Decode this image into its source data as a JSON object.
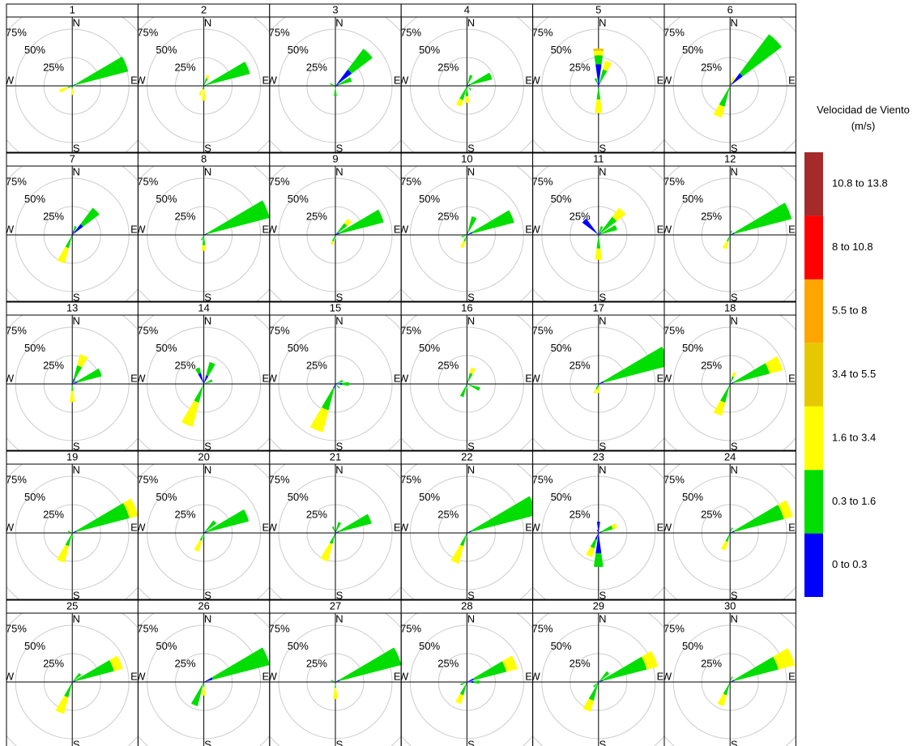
{
  "chart_data": {
    "type": "windrose",
    "legend_title": "Velocidad de Viento (m/s)",
    "bins": [
      {
        "label": "0 to 0.3",
        "color": "#0000ff"
      },
      {
        "label": "0.3 to 1.6",
        "color": "#00dd00"
      },
      {
        "label": "1.6 to 3.4",
        "color": "#ffff00"
      },
      {
        "label": "3.4 to 5.5",
        "color": "#e6c800"
      },
      {
        "label": "5.5 to 8",
        "color": "#ffa500"
      },
      {
        "label": "8 to 10.8",
        "color": "#ff0000"
      },
      {
        "label": "10.8 to 13.8",
        "color": "#a52a2a"
      }
    ],
    "cardinals": [
      "N",
      "E",
      "S",
      "W"
    ],
    "rlim": [
      0,
      75
    ],
    "rticks": [
      {
        "value": 25,
        "label": "25%"
      },
      {
        "value": 50,
        "label": "50%"
      },
      {
        "value": 75,
        "label": "75%"
      }
    ],
    "panels": [
      {
        "title": "1",
        "directions": [
          67.5,
          247.5,
          180,
          90
        ],
        "values": [
          [
            3,
            48,
            0
          ],
          [
            1,
            3,
            8
          ],
          [
            0,
            2,
            6
          ],
          [
            0,
            3,
            0
          ]
        ]
      },
      {
        "title": "2",
        "directions": [
          67.5,
          22.5,
          202.5,
          180
        ],
        "values": [
          [
            2,
            40,
            0
          ],
          [
            1,
            6,
            3
          ],
          [
            0,
            3,
            6
          ],
          [
            0,
            3,
            10
          ]
        ]
      },
      {
        "title": "3",
        "directions": [
          45,
          67.5,
          180,
          292.5
        ],
        "values": [
          [
            18,
            23,
            0
          ],
          [
            3,
            12,
            0
          ],
          [
            1,
            8,
            0
          ],
          [
            0,
            5,
            0
          ]
        ]
      },
      {
        "title": "4",
        "directions": [
          67.5,
          22.5,
          202.5,
          180,
          135
        ],
        "values": [
          [
            3,
            20,
            0
          ],
          [
            2,
            8,
            0
          ],
          [
            1,
            12,
            6
          ],
          [
            1,
            8,
            6
          ],
          [
            0,
            5,
            0
          ]
        ]
      },
      {
        "title": "5",
        "directions": [
          0,
          22.5,
          180,
          337.5
        ],
        "values": [
          [
            19,
            8,
            4,
            2
          ],
          [
            3,
            12,
            8
          ],
          [
            2,
            10,
            12
          ],
          [
            2,
            5,
            0
          ]
        ]
      },
      {
        "title": "6",
        "directions": [
          45,
          202.5,
          22.5
        ],
        "values": [
          [
            14,
            43,
            0
          ],
          [
            1,
            18,
            10
          ],
          [
            0,
            3,
            5
          ]
        ]
      },
      {
        "title": "7",
        "directions": [
          45,
          202.5,
          22.5
        ],
        "values": [
          [
            12,
            18,
            0
          ],
          [
            2,
            10,
            14
          ],
          [
            4,
            4,
            0
          ]
        ]
      },
      {
        "title": "8",
        "directions": [
          67.5,
          180,
          202.5
        ],
        "values": [
          [
            3,
            57,
            0
          ],
          [
            1,
            8,
            5
          ],
          [
            0,
            5,
            0
          ]
        ]
      },
      {
        "title": "9",
        "directions": [
          67.5,
          45,
          202.5,
          180
        ],
        "values": [
          [
            4,
            40,
            0
          ],
          [
            3,
            10,
            5
          ],
          [
            1,
            5,
            3
          ],
          [
            0,
            5,
            0
          ]
        ]
      },
      {
        "title": "10",
        "directions": [
          67.5,
          22.5,
          202.5,
          247.5
        ],
        "values": [
          [
            5,
            38,
            0
          ],
          [
            2,
            15,
            0
          ],
          [
            1,
            5,
            6
          ],
          [
            0,
            5,
            0
          ]
        ]
      },
      {
        "title": "11",
        "directions": [
          45,
          67.5,
          315,
          180,
          22.5
        ],
        "values": [
          [
            3,
            17,
            10
          ],
          [
            2,
            15,
            0
          ],
          [
            18,
            0,
            0
          ],
          [
            2,
            10,
            10
          ],
          [
            0,
            8,
            0
          ]
        ]
      },
      {
        "title": "12",
        "directions": [
          67.5,
          202.5,
          22.5
        ],
        "values": [
          [
            4,
            52,
            0
          ],
          [
            1,
            5,
            7
          ],
          [
            0,
            4,
            0
          ]
        ]
      },
      {
        "title": "13",
        "directions": [
          67.5,
          22.5,
          180,
          45
        ],
        "values": [
          [
            5,
            22,
            0
          ],
          [
            5,
            12,
            10
          ],
          [
            1,
            5,
            10
          ],
          [
            0,
            4,
            0
          ]
        ]
      },
      {
        "title": "14",
        "directions": [
          202.5,
          22.5,
          67.5,
          337.5
        ],
        "values": [
          [
            2,
            15,
            22
          ],
          [
            8,
            12,
            0
          ],
          [
            0,
            8,
            0
          ],
          [
            10,
            5,
            0
          ]
        ]
      },
      {
        "title": "15",
        "directions": [
          202.5,
          90,
          67.5,
          135
        ],
        "values": [
          [
            4,
            20,
            20
          ],
          [
            6,
            6,
            0
          ],
          [
            2,
            5,
            0
          ],
          [
            0,
            5,
            0
          ]
        ]
      },
      {
        "title": "16",
        "directions": [
          22.5,
          112.5,
          202.5,
          180
        ],
        "values": [
          [
            2,
            8,
            5
          ],
          [
            0,
            12,
            0
          ],
          [
            2,
            10,
            0
          ],
          [
            0,
            5,
            0
          ]
        ]
      },
      {
        "title": "17",
        "directions": [
          67.5,
          202.5,
          180
        ],
        "values": [
          [
            5,
            60,
            0
          ],
          [
            1,
            4,
            4
          ],
          [
            0,
            3,
            5
          ]
        ]
      },
      {
        "title": "18",
        "directions": [
          67.5,
          202.5,
          22.5
        ],
        "values": [
          [
            3,
            33,
            12
          ],
          [
            2,
            15,
            12
          ],
          [
            1,
            6,
            4
          ]
        ]
      },
      {
        "title": "19",
        "directions": [
          67.5,
          202.5,
          180,
          292.5
        ],
        "values": [
          [
            4,
            48,
            8
          ],
          [
            2,
            10,
            15
          ],
          [
            0,
            5,
            0
          ],
          [
            0,
            4,
            0
          ]
        ]
      },
      {
        "title": "20",
        "directions": [
          67.5,
          45,
          202.5,
          180
        ],
        "values": [
          [
            3,
            38,
            0
          ],
          [
            2,
            12,
            0
          ],
          [
            1,
            6,
            10
          ],
          [
            0,
            4,
            0
          ]
        ]
      },
      {
        "title": "21",
        "directions": [
          67.5,
          202.5,
          22.5,
          337.5
        ],
        "values": [
          [
            3,
            30,
            0
          ],
          [
            2,
            8,
            16
          ],
          [
            2,
            8,
            0
          ],
          [
            0,
            6,
            0
          ]
        ]
      },
      {
        "title": "22",
        "directions": [
          67.5,
          202.5,
          180
        ],
        "values": [
          [
            4,
            60,
            0
          ],
          [
            2,
            10,
            16
          ],
          [
            0,
            4,
            0
          ]
        ]
      },
      {
        "title": "23",
        "directions": [
          180,
          202.5,
          0,
          67.5,
          337.5
        ],
        "values": [
          [
            18,
            12,
            0
          ],
          [
            6,
            8,
            8
          ],
          [
            10,
            0,
            0
          ],
          [
            3,
            10,
            4
          ],
          [
            3,
            0,
            0
          ]
        ]
      },
      {
        "title": "24",
        "directions": [
          67.5,
          202.5,
          22.5
        ],
        "values": [
          [
            4,
            45,
            8
          ],
          [
            2,
            6,
            8
          ],
          [
            0,
            5,
            0
          ]
        ]
      },
      {
        "title": "25",
        "directions": [
          67.5,
          202.5,
          45
        ],
        "values": [
          [
            3,
            35,
            8
          ],
          [
            2,
            12,
            15
          ],
          [
            0,
            10,
            0
          ]
        ]
      },
      {
        "title": "26",
        "directions": [
          67.5,
          202.5,
          180
        ],
        "values": [
          [
            8,
            52,
            0
          ],
          [
            2,
            20,
            0
          ],
          [
            0,
            4,
            8
          ]
        ]
      },
      {
        "title": "27",
        "directions": [
          67.5,
          180,
          292.5
        ],
        "values": [
          [
            4,
            56,
            0
          ],
          [
            1,
            4,
            10
          ],
          [
            0,
            4,
            0
          ]
        ]
      },
      {
        "title": "28",
        "directions": [
          67.5,
          202.5,
          247.5,
          90
        ],
        "values": [
          [
            6,
            30,
            10
          ],
          [
            2,
            10,
            8
          ],
          [
            0,
            6,
            0
          ],
          [
            6,
            5,
            0
          ]
        ]
      },
      {
        "title": "29",
        "directions": [
          67.5,
          202.5,
          45,
          225
        ],
        "values": [
          [
            4,
            40,
            10
          ],
          [
            2,
            15,
            10
          ],
          [
            0,
            12,
            0
          ],
          [
            0,
            6,
            0
          ]
        ]
      },
      {
        "title": "30",
        "directions": [
          67.5,
          202.5,
          22.5
        ],
        "values": [
          [
            4,
            40,
            15
          ],
          [
            2,
            10,
            10
          ],
          [
            0,
            5,
            0
          ]
        ]
      }
    ]
  }
}
